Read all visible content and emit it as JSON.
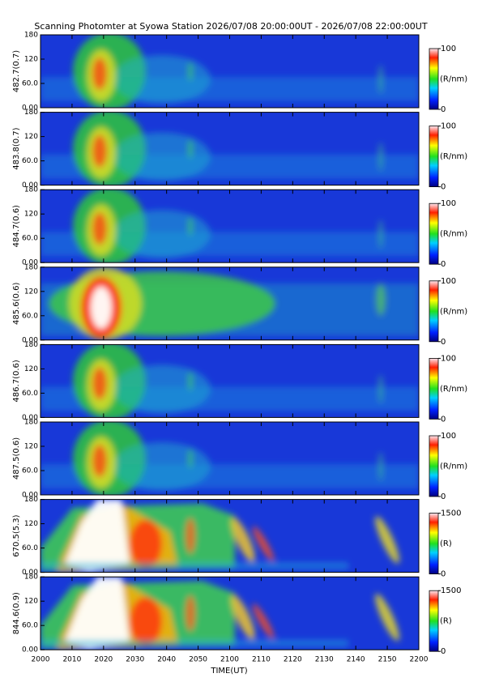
{
  "chart_data": {
    "type": "heatmap",
    "title": "Scanning Photomter at Syowa Station 2026/07/08 20:00:00UT - 2026/07/08 22:00:00UT",
    "xlabel": "TIME(UT)",
    "xlim": [
      2000,
      2200
    ],
    "xticks": [
      2000,
      2010,
      2020,
      2030,
      2040,
      2050,
      2100,
      2110,
      2120,
      2130,
      2140,
      2150,
      2200
    ],
    "panels": [
      {
        "ylabel": "482.7(0.7)",
        "ylim": [
          0,
          180
        ],
        "yticks": [
          {
            "value": 0,
            "label": "0.00"
          },
          {
            "value": 60,
            "label": "60.0"
          },
          120,
          180
        ],
        "colorbar_lim": [
          0,
          100
        ],
        "colorbar_ticks": [
          0,
          100
        ],
        "colorbar_label": "(R/nm)"
      },
      {
        "ylabel": "483.8(0.7)",
        "ylim": [
          0,
          180
        ],
        "yticks": [
          {
            "value": 0,
            "label": "0.00"
          },
          {
            "value": 60,
            "label": "60.0"
          },
          120,
          180
        ],
        "colorbar_lim": [
          0,
          100
        ],
        "colorbar_ticks": [
          0,
          100
        ],
        "colorbar_label": "(R/nm)"
      },
      {
        "ylabel": "484.7(0.6)",
        "ylim": [
          0,
          180
        ],
        "yticks": [
          {
            "value": 0,
            "label": "0.00"
          },
          {
            "value": 60,
            "label": "60.0"
          },
          120,
          180
        ],
        "colorbar_lim": [
          0,
          100
        ],
        "colorbar_ticks": [
          0,
          100
        ],
        "colorbar_label": "(R/nm)"
      },
      {
        "ylabel": "485.6(0.6)",
        "ylim": [
          0,
          180
        ],
        "yticks": [
          {
            "value": 0,
            "label": "0.00"
          },
          {
            "value": 60,
            "label": "60.0"
          },
          120,
          180
        ],
        "colorbar_lim": [
          0,
          100
        ],
        "colorbar_ticks": [
          0,
          100
        ],
        "colorbar_label": "(R/nm)"
      },
      {
        "ylabel": "486.7(0.6)",
        "ylim": [
          0,
          180
        ],
        "yticks": [
          {
            "value": 0,
            "label": "0.00"
          },
          {
            "value": 60,
            "label": "60.0"
          },
          120,
          180
        ],
        "colorbar_lim": [
          0,
          100
        ],
        "colorbar_ticks": [
          0,
          100
        ],
        "colorbar_label": "(R/nm)"
      },
      {
        "ylabel": "487.5(0.6)",
        "ylim": [
          0,
          180
        ],
        "yticks": [
          {
            "value": 0,
            "label": "0.00"
          },
          {
            "value": 60,
            "label": "60.0"
          },
          120,
          180
        ],
        "colorbar_lim": [
          0,
          100
        ],
        "colorbar_ticks": [
          0,
          100
        ],
        "colorbar_label": "(R/nm)"
      },
      {
        "ylabel": "670.5(5.3)",
        "ylim": [
          0,
          180
        ],
        "yticks": [
          {
            "value": 0,
            "label": "0.00"
          },
          {
            "value": 60,
            "label": "60.0"
          },
          120,
          180
        ],
        "colorbar_lim": [
          0,
          1500
        ],
        "colorbar_ticks": [
          0,
          1500
        ],
        "colorbar_label": "(R)"
      },
      {
        "ylabel": "844.6(0.9)",
        "ylim": [
          0,
          180
        ],
        "yticks": [
          {
            "value": 0,
            "label": "0.00"
          },
          {
            "value": 60,
            "label": "60.0"
          },
          120,
          180
        ],
        "colorbar_lim": [
          0,
          1500
        ],
        "colorbar_ticks": [
          0,
          1500
        ],
        "colorbar_label": "(R)"
      }
    ]
  }
}
